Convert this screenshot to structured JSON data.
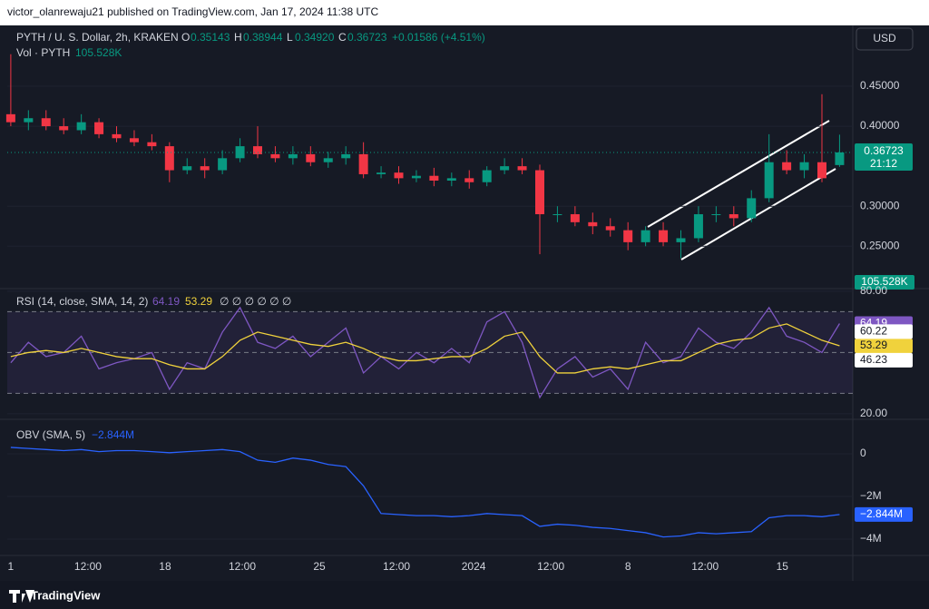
{
  "header": {
    "publisher": "victor_olanrewaju21 published on TradingView.com, Jan 17, 2024 11:38 UTC",
    "currency": "USD",
    "brand": "TradingView"
  },
  "chart_data": [
    {
      "type": "candlestick",
      "title": "PYTH / U. S. Dollar, 2h, KRAKEN",
      "legend": {
        "o": "O",
        "open": "0.35143",
        "h": "H",
        "high": "0.38944",
        "l": "L",
        "low": "0.34920",
        "c": "C",
        "close": "0.36723",
        "change": "+0.01586 (+4.51%)"
      },
      "volume_title": "Vol · PYTH",
      "volume_value": "105.528K",
      "countdown": "21:12",
      "last_price": "0.36723",
      "up_color": "#089981",
      "down_color": "#f23645",
      "x": [
        0,
        0.8,
        1.6,
        2.4,
        3.2,
        4,
        4.8,
        5.6,
        6.4,
        7.2,
        8,
        8.8,
        9.6,
        10.4,
        11.2,
        12,
        12.8,
        13.6,
        14.4,
        15.2,
        16,
        16.8,
        17.6,
        18.4,
        19.2,
        20,
        20.8,
        21.6,
        22.4,
        23.2,
        24,
        24.8,
        25.6,
        26.4,
        27.2,
        28,
        28.8,
        29.6,
        30.4,
        31.2,
        32,
        32.8,
        33.6,
        34.4,
        35.2,
        36,
        36.8,
        37.6
      ],
      "open": [
        0.415,
        0.405,
        0.41,
        0.4,
        0.395,
        0.405,
        0.39,
        0.385,
        0.38,
        0.375,
        0.345,
        0.35,
        0.345,
        0.36,
        0.375,
        0.365,
        0.36,
        0.365,
        0.355,
        0.36,
        0.365,
        0.34,
        0.342,
        0.335,
        0.338,
        0.332,
        0.335,
        0.33,
        0.345,
        0.35,
        0.345,
        0.29,
        0.29,
        0.28,
        0.275,
        0.27,
        0.255,
        0.27,
        0.255,
        0.26,
        0.29,
        0.29,
        0.285,
        0.31,
        0.355,
        0.345,
        0.355,
        0.35143
      ],
      "high": [
        0.49,
        0.42,
        0.42,
        0.41,
        0.415,
        0.41,
        0.4,
        0.395,
        0.39,
        0.38,
        0.36,
        0.36,
        0.37,
        0.385,
        0.4,
        0.375,
        0.375,
        0.375,
        0.368,
        0.375,
        0.38,
        0.35,
        0.35,
        0.345,
        0.348,
        0.342,
        0.345,
        0.35,
        0.36,
        0.36,
        0.352,
        0.3,
        0.3,
        0.292,
        0.285,
        0.28,
        0.275,
        0.28,
        0.27,
        0.3,
        0.3,
        0.3,
        0.32,
        0.39,
        0.37,
        0.365,
        0.44,
        0.38944
      ],
      "low": [
        0.4,
        0.395,
        0.395,
        0.39,
        0.39,
        0.385,
        0.38,
        0.375,
        0.37,
        0.33,
        0.34,
        0.335,
        0.34,
        0.355,
        0.36,
        0.355,
        0.352,
        0.35,
        0.348,
        0.352,
        0.335,
        0.335,
        0.328,
        0.33,
        0.325,
        0.325,
        0.322,
        0.325,
        0.34,
        0.34,
        0.24,
        0.28,
        0.275,
        0.265,
        0.262,
        0.245,
        0.25,
        0.25,
        0.235,
        0.255,
        0.28,
        0.275,
        0.28,
        0.305,
        0.34,
        0.335,
        0.33,
        0.3492
      ],
      "close": [
        0.405,
        0.41,
        0.4,
        0.395,
        0.405,
        0.39,
        0.385,
        0.38,
        0.375,
        0.345,
        0.35,
        0.345,
        0.36,
        0.375,
        0.365,
        0.36,
        0.365,
        0.355,
        0.36,
        0.365,
        0.34,
        0.342,
        0.335,
        0.338,
        0.332,
        0.335,
        0.33,
        0.345,
        0.35,
        0.345,
        0.29,
        0.29,
        0.28,
        0.275,
        0.27,
        0.255,
        0.27,
        0.255,
        0.26,
        0.29,
        0.29,
        0.285,
        0.31,
        0.355,
        0.345,
        0.355,
        0.335,
        0.36723
      ],
      "xlim": [
        -0.16,
        38.2
      ],
      "ylim": [
        0.197,
        0.526
      ],
      "yticks": [
        {
          "value": 0.25,
          "label": "0.25000"
        },
        {
          "value": 0.3,
          "label": "0.30000"
        },
        {
          "value": 0.4,
          "label": "0.40000"
        },
        {
          "value": 0.45,
          "label": "0.45000"
        }
      ]
    },
    {
      "type": "line",
      "title": "RSI (14, close, SMA, 14, 2)",
      "placeholders": "∅ ∅ ∅ ∅ ∅ ∅",
      "x": [
        0,
        0.8,
        1.6,
        2.4,
        3.2,
        4,
        4.8,
        5.6,
        6.4,
        7.2,
        8,
        8.8,
        9.6,
        10.4,
        11.2,
        12,
        12.8,
        13.6,
        14.4,
        15.2,
        16,
        16.8,
        17.6,
        18.4,
        19.2,
        20,
        20.8,
        21.6,
        22.4,
        23.2,
        24,
        24.8,
        25.6,
        26.4,
        27.2,
        28,
        28.8,
        29.6,
        30.4,
        31.2,
        32,
        32.8,
        33.6,
        34.4,
        35.2,
        36,
        36.8,
        37.6
      ],
      "series": [
        {
          "name": "RSI",
          "color": "#7e57c2",
          "values": [
            45,
            55,
            48,
            50,
            58,
            42,
            45,
            47,
            50,
            32,
            45,
            42,
            60,
            72,
            55,
            52,
            58,
            48,
            55,
            62,
            40,
            48,
            42,
            50,
            45,
            52,
            45,
            65,
            70,
            55,
            28,
            42,
            48,
            38,
            42,
            32,
            55,
            45,
            48,
            62,
            55,
            52,
            60,
            72,
            58,
            55,
            50,
            64.19
          ]
        },
        {
          "name": "SMA",
          "color": "#f0d23c",
          "values": [
            48,
            50,
            51,
            50,
            52,
            50,
            48,
            47,
            47,
            44,
            42,
            42,
            48,
            56,
            60,
            58,
            56,
            54,
            53,
            55,
            52,
            48,
            46,
            46,
            47,
            48,
            48,
            52,
            58,
            60,
            48,
            40,
            40,
            42,
            43,
            42,
            44,
            46,
            46,
            50,
            54,
            56,
            57,
            62,
            64,
            60,
            56,
            53.29
          ]
        }
      ],
      "band_values": [
        60.22,
        46.23
      ],
      "levels": [
        70,
        50,
        30
      ],
      "xlim": [
        -0.16,
        38.2
      ],
      "ylim": [
        17.3,
        81.3
      ],
      "yticks": [
        {
          "value": 20,
          "label": "20.00"
        },
        {
          "value": 80,
          "label": "80.00"
        }
      ]
    },
    {
      "type": "line",
      "title": "OBV (SMA, 5)",
      "x": [
        0,
        0.8,
        1.6,
        2.4,
        3.2,
        4,
        4.8,
        5.6,
        6.4,
        7.2,
        8,
        8.8,
        9.6,
        10.4,
        11.2,
        12,
        12.8,
        13.6,
        14.4,
        15.2,
        16,
        16.8,
        17.6,
        18.4,
        19.2,
        20,
        20.8,
        21.6,
        22.4,
        23.2,
        24,
        24.8,
        25.6,
        26.4,
        27.2,
        28,
        28.8,
        29.6,
        30.4,
        31.2,
        32,
        32.8,
        33.6,
        34.4,
        35.2,
        36,
        36.8,
        37.6
      ],
      "series": [
        {
          "name": "OBV",
          "color": "#2962ff",
          "last_label": "−2.844M",
          "values": [
            300000,
            250000,
            200000,
            150000,
            200000,
            100000,
            150000,
            150000,
            100000,
            50000,
            100000,
            150000,
            200000,
            100000,
            -300000,
            -400000,
            -200000,
            -300000,
            -500000,
            -600000,
            -1500000,
            -2800000,
            -2850000,
            -2900000,
            -2900000,
            -2950000,
            -2900000,
            -2800000,
            -2850000,
            -2900000,
            -3400000,
            -3300000,
            -3350000,
            -3450000,
            -3500000,
            -3600000,
            -3700000,
            -3900000,
            -3850000,
            -3700000,
            -3750000,
            -3700000,
            -3650000,
            -3000000,
            -2900000,
            -2900000,
            -2950000,
            -2844000
          ]
        }
      ],
      "xlim": [
        -0.16,
        38.2
      ],
      "ylim": [
        -4766000,
        1617000
      ],
      "yticks": [
        0,
        {
          "value": -2000000,
          "label": "−2M"
        },
        {
          "value": -4000000,
          "label": "−4M"
        }
      ],
      "xticks": [
        {
          "value": 0,
          "label": "1"
        },
        {
          "value": 3.5,
          "label": "12:00"
        },
        {
          "value": 7,
          "label": "18"
        },
        {
          "value": 10.5,
          "label": "12:00"
        },
        {
          "value": 14,
          "label": "25"
        },
        {
          "value": 17.5,
          "label": "12:00"
        },
        {
          "value": 21,
          "label": "2024"
        },
        {
          "value": 24.5,
          "label": "12:00"
        },
        {
          "value": 28,
          "label": "8"
        },
        {
          "value": 31.5,
          "label": "12:00"
        },
        {
          "value": 35,
          "label": "15"
        }
      ]
    }
  ]
}
